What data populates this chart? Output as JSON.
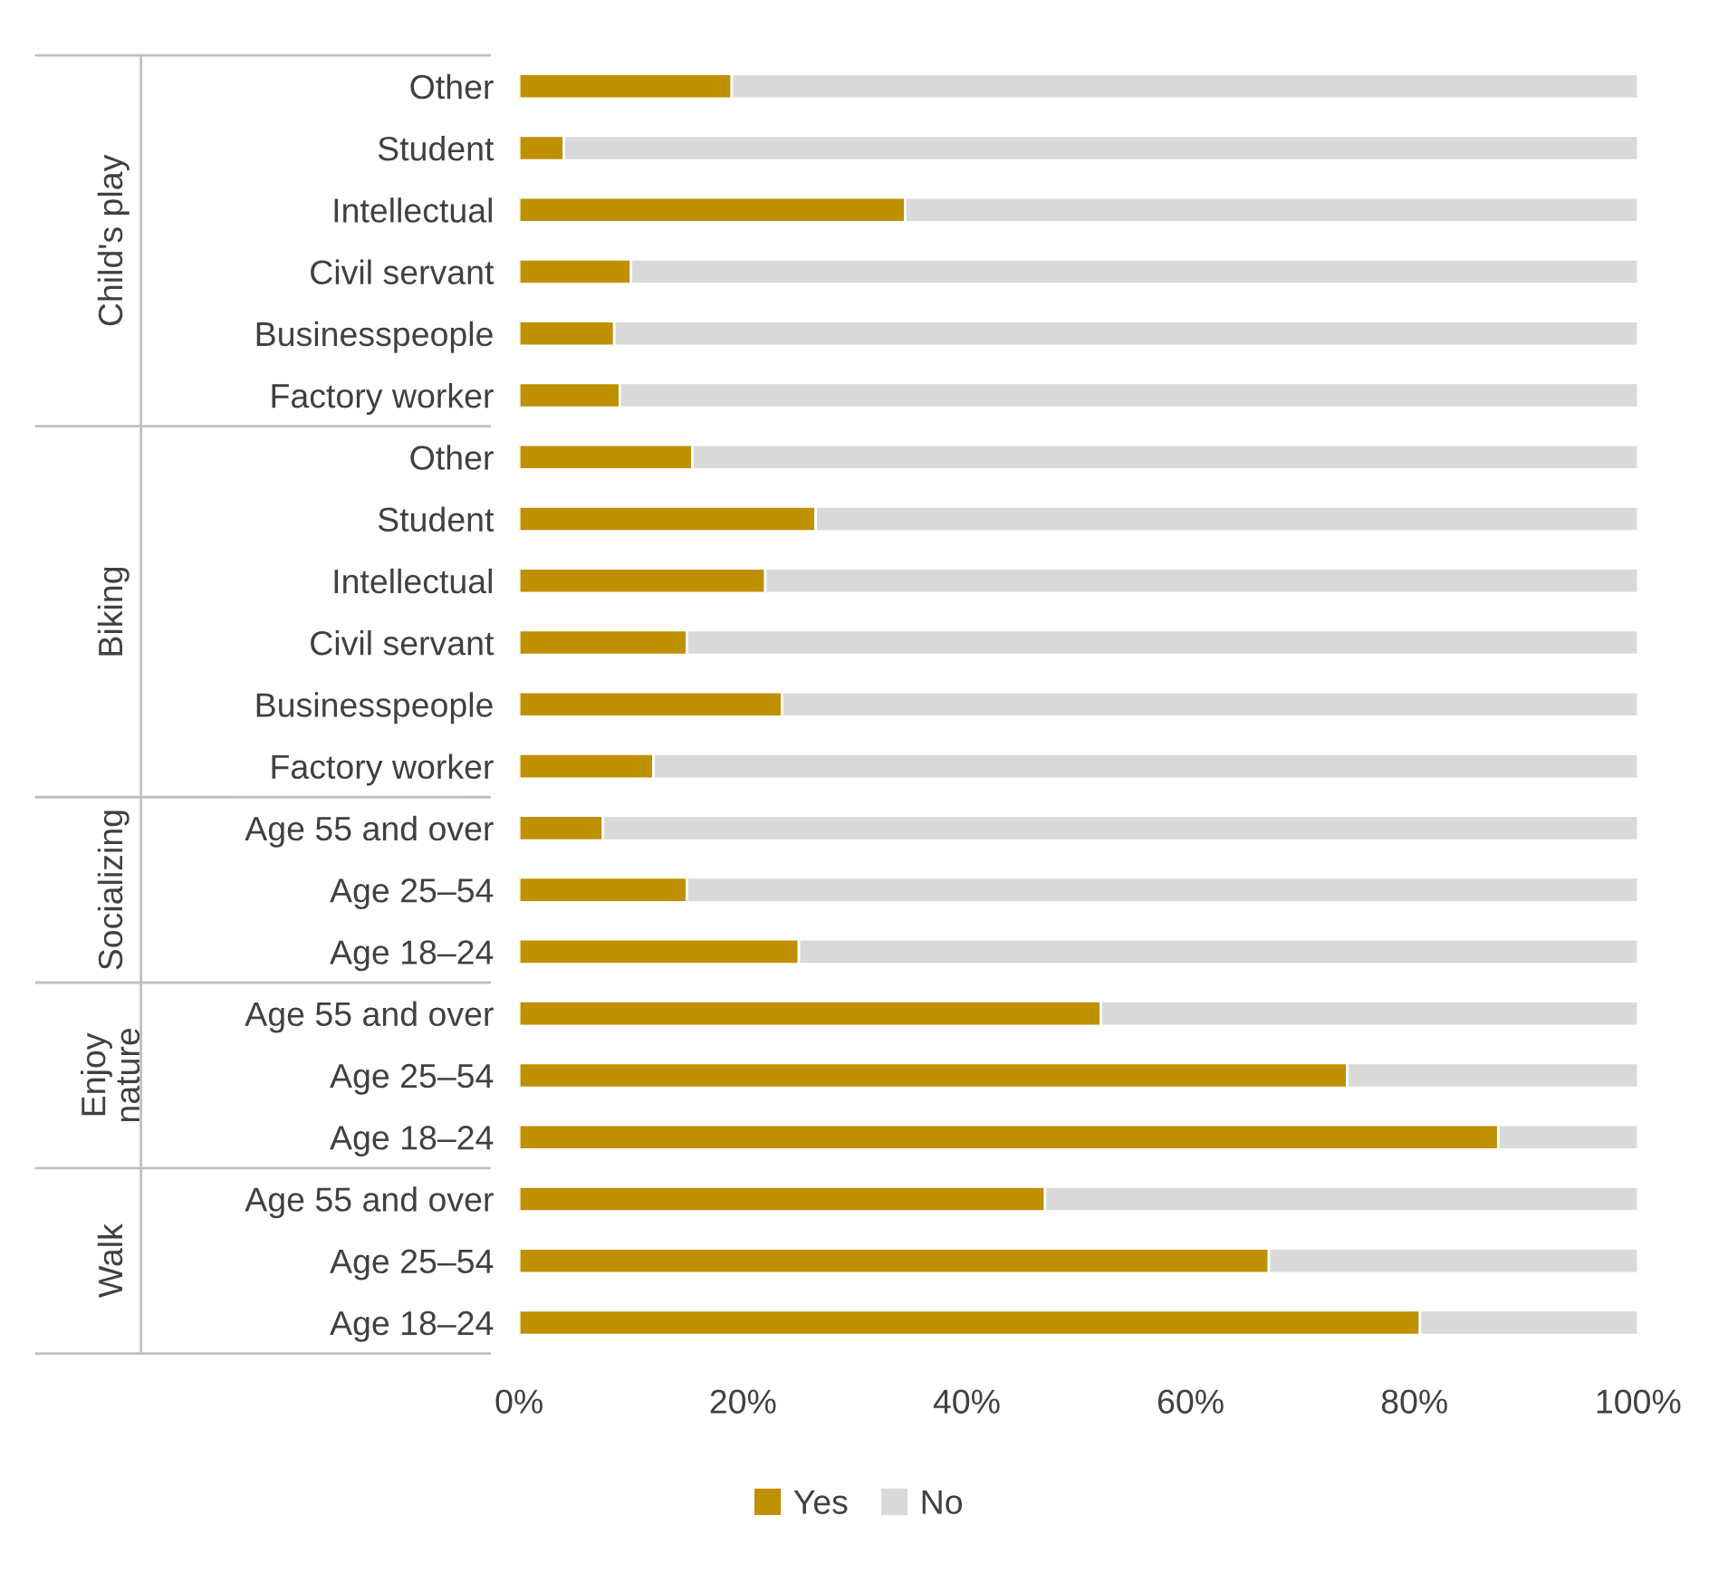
{
  "chart_data": {
    "type": "bar",
    "orientation": "horizontal",
    "stacked": true,
    "categories": [
      "Other",
      "Student",
      "Intellectual",
      "Civil servant",
      "Businesspeople",
      "Factory worker",
      "Other",
      "Student",
      "Intellectual",
      "Civil servant",
      "Businesspeople",
      "Factory worker",
      "Age 55 and over",
      "Age 25–54",
      "Age 18–24",
      "Age 55 and over",
      "Age 25–54",
      "Age 18–24",
      "Age 55 and over",
      "Age 25–54",
      "Age 18–24"
    ],
    "series": [
      {
        "name": "Yes",
        "color": "#bf9000",
        "values": [
          19,
          4,
          34.5,
          10,
          8.5,
          9,
          15.5,
          26.5,
          22,
          15,
          23.5,
          12,
          7.5,
          15,
          25,
          52,
          74,
          87.5,
          47,
          67,
          80.5
        ]
      },
      {
        "name": "No",
        "color": "#d9d9d9",
        "values": [
          81,
          96,
          65.5,
          90,
          91.5,
          91,
          84.5,
          73.5,
          78,
          85,
          76.5,
          88,
          92.5,
          85,
          75,
          48,
          26,
          12.5,
          53,
          33,
          19.5
        ]
      }
    ],
    "xlim": [
      0,
      100
    ],
    "xticks": [
      {
        "value": 0,
        "label": "0%"
      },
      {
        "value": 20,
        "label": "20%"
      },
      {
        "value": 40,
        "label": "40%"
      },
      {
        "value": 60,
        "label": "60%"
      },
      {
        "value": 80,
        "label": "80%"
      },
      {
        "value": 100,
        "label": "100%"
      }
    ],
    "annotations": [
      "Child's play",
      "Biking",
      "Socializing",
      "Enjoy\nnature",
      "Walk"
    ],
    "legend": "bottom",
    "grid": false
  }
}
